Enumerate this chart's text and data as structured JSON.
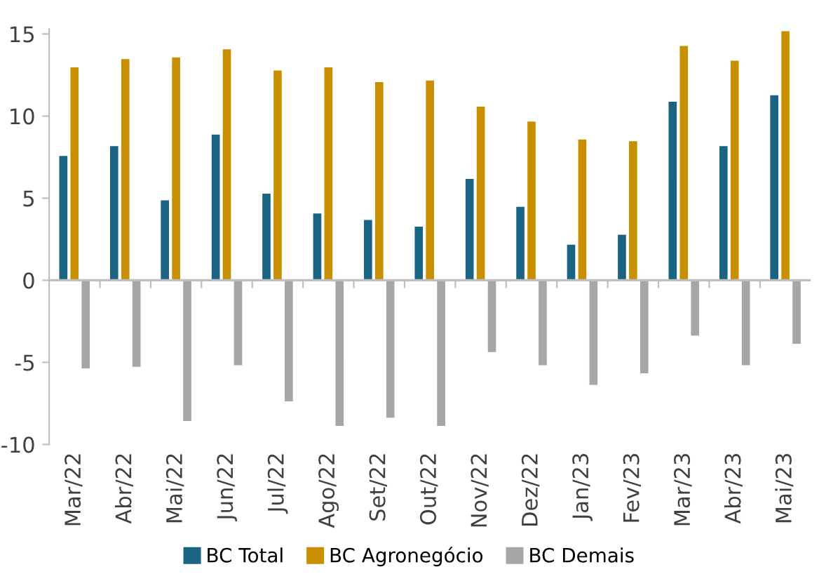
{
  "chart_data": {
    "type": "bar",
    "categories": [
      "Mar/22",
      "Abr/22",
      "Mai/22",
      "Jun/22",
      "Jul/22",
      "Ago/22",
      "Set/22",
      "Out/22",
      "Nov/22",
      "Dez/22",
      "Jan/23",
      "Fev/23",
      "Mar/23",
      "Abr/23",
      "Mai/23"
    ],
    "series": [
      {
        "name": "BC Total",
        "color": "#1a6382",
        "values": [
          7.6,
          8.2,
          4.9,
          8.9,
          5.3,
          4.1,
          3.7,
          3.3,
          6.2,
          4.5,
          2.2,
          2.8,
          10.9,
          8.2,
          11.3
        ]
      },
      {
        "name": "BC Agronegócio",
        "color": "#c89000",
        "values": [
          13.0,
          13.5,
          13.6,
          14.1,
          12.8,
          13.0,
          12.1,
          12.2,
          10.6,
          9.7,
          8.6,
          8.5,
          14.3,
          13.4,
          15.2
        ]
      },
      {
        "name": "BC Demais",
        "color": "#a6a6a6",
        "values": [
          -5.4,
          -5.3,
          -8.6,
          -5.2,
          -7.4,
          -8.9,
          -8.4,
          -8.9,
          -4.4,
          -5.2,
          -6.4,
          -5.7,
          -3.4,
          -5.2,
          -3.9
        ]
      }
    ],
    "ylim": [
      -10,
      15.3
    ],
    "yticks": [
      -10,
      -5,
      0,
      5,
      10,
      15
    ],
    "grid": false,
    "ref_lines": [
      {
        "axis": "y",
        "value": 0,
        "color": "#bfbfbf"
      }
    ],
    "legend": "bottom"
  }
}
